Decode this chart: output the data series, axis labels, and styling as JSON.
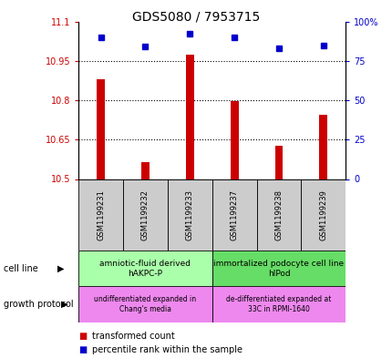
{
  "title": "GDS5080 / 7953715",
  "samples": [
    "GSM1199231",
    "GSM1199232",
    "GSM1199233",
    "GSM1199237",
    "GSM1199238",
    "GSM1199239"
  ],
  "x_positions": [
    1,
    2,
    3,
    4,
    5,
    6
  ],
  "red_values": [
    10.88,
    10.565,
    10.975,
    10.795,
    10.625,
    10.745
  ],
  "blue_values": [
    90,
    84,
    92,
    90,
    83,
    85
  ],
  "y_min": 10.5,
  "y_max": 11.1,
  "y_ticks": [
    10.5,
    10.65,
    10.8,
    10.95,
    11.1
  ],
  "y_tick_labels": [
    "10.5",
    "10.65",
    "10.8",
    "10.95",
    "11.1"
  ],
  "right_y_ticks": [
    0,
    25,
    50,
    75,
    100
  ],
  "right_y_labels": [
    "0",
    "25",
    "50",
    "75",
    "100%"
  ],
  "bar_color": "#cc0000",
  "dot_color": "#0000cc",
  "label_color_left": "#cc0000",
  "label_color_right": "#0000cc",
  "cell_line_left_color": "#aaffaa",
  "cell_line_right_color": "#66dd66",
  "growth_protocol_color": "#ee88ee",
  "sample_bg_color": "#cccccc",
  "cell_line_left_text": "amniotic-fluid derived\nhAKPC-P",
  "cell_line_right_text": "immortalized podocyte cell line\nhIPod",
  "growth_left_text": "undifferentiated expanded in\nChang's media",
  "growth_right_text": "de-differentiated expanded at\n33C in RPMI-1640",
  "legend_red_text": "transformed count",
  "legend_blue_text": "percentile rank within the sample",
  "cell_line_label": "cell line",
  "growth_protocol_label": "growth protocol"
}
